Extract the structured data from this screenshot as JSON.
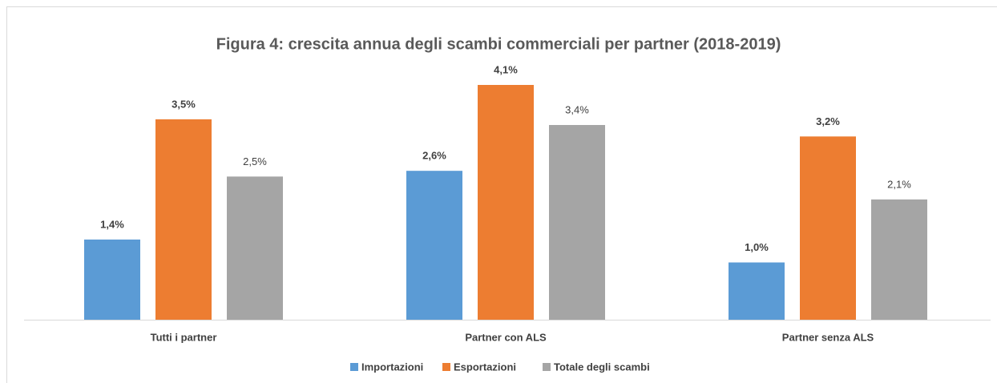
{
  "chart_data": {
    "type": "bar",
    "title": "Figura 4: crescita annua degli scambi commerciali per partner (2018-2019)",
    "categories": [
      "Tutti i partner",
      "Partner con ALS",
      "Partner senza ALS"
    ],
    "series": [
      {
        "name": "Importazioni",
        "color": "#5b9bd5",
        "values": [
          1.4,
          2.6,
          1.0
        ],
        "value_labels": [
          "1,4%",
          "2,6%",
          "1,0%"
        ]
      },
      {
        "name": "Esportazioni",
        "color": "#ed7d31",
        "values": [
          3.5,
          4.1,
          3.2
        ],
        "value_labels": [
          "3,5%",
          "4,1%",
          "3,2%"
        ]
      },
      {
        "name": "Totale degli scambi",
        "color": "#a5a5a5",
        "values": [
          2.5,
          3.4,
          2.1
        ],
        "value_labels": [
          "2,5%",
          "3,4%",
          "2,1%"
        ]
      }
    ]
  }
}
